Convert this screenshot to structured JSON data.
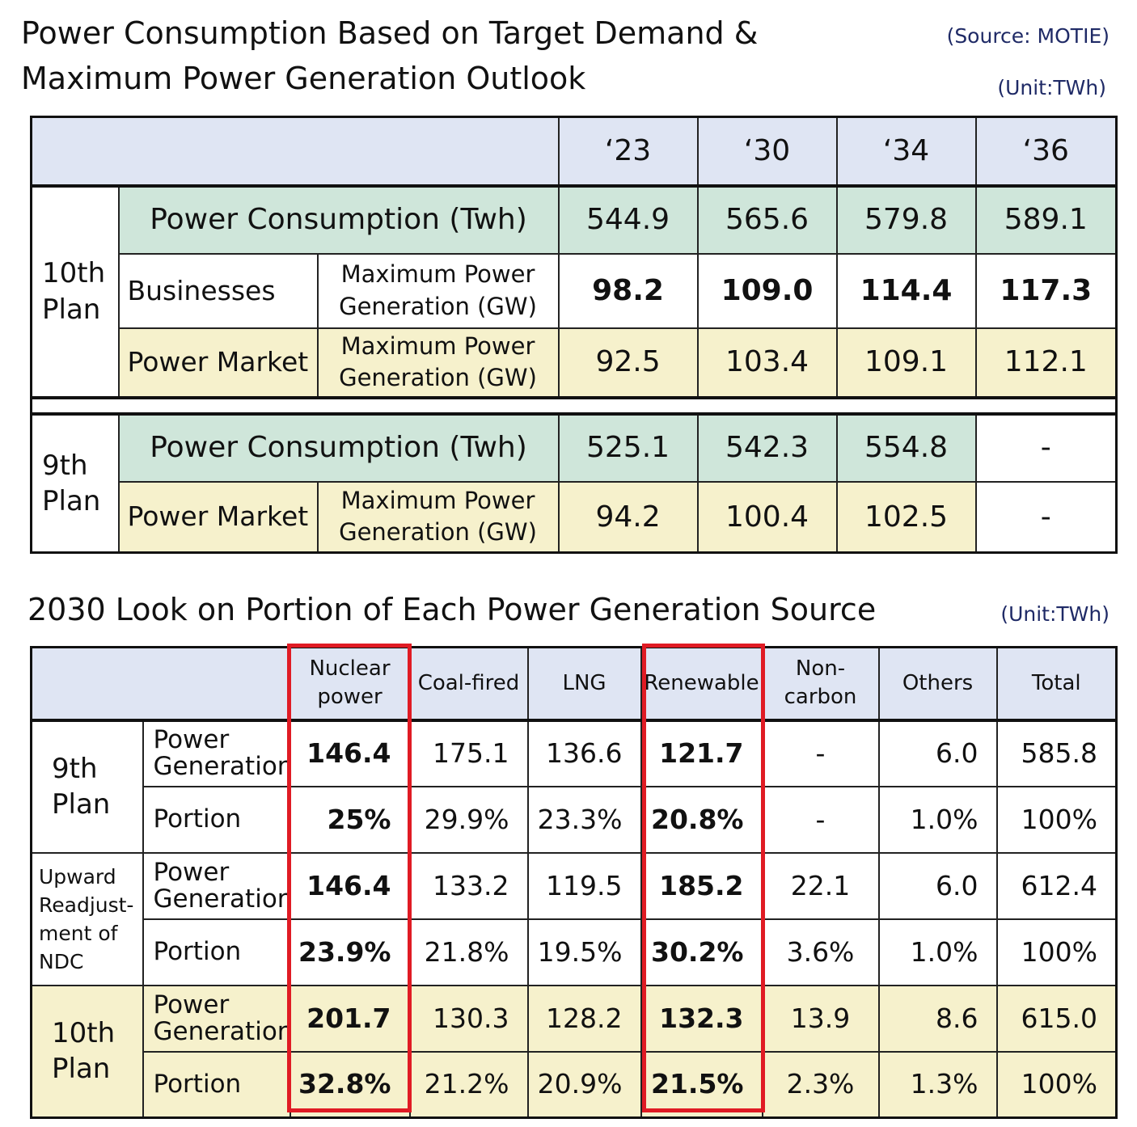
{
  "title1": {
    "line1": "Power Consumption Based on Target Demand &",
    "line2": "Maximum Power Generation Outlook",
    "source": "(Source: MOTIE)",
    "unit": "(Unit:TWh)"
  },
  "table1": {
    "years": [
      "‘23",
      "‘30",
      "‘34",
      "‘36"
    ],
    "plan10": {
      "label": "10th Plan",
      "consumption": {
        "label": "Power Consumption (Twh)",
        "values": [
          "544.9",
          "565.6",
          "579.8",
          "589.1"
        ]
      },
      "businesses": {
        "label": "Businesses",
        "sub": "Maximum Power Generation (GW)",
        "values": [
          "98.2",
          "109.0",
          "114.4",
          "117.3"
        ]
      },
      "market": {
        "label": "Power Market",
        "sub": "Maximum Power Generation (GW)",
        "values": [
          "92.5",
          "103.4",
          "109.1",
          "112.1"
        ]
      }
    },
    "plan9": {
      "label": "9th Plan",
      "consumption": {
        "label": "Power Consumption (Twh)",
        "values": [
          "525.1",
          "542.3",
          "554.8",
          "-"
        ]
      },
      "market": {
        "label": "Power Market",
        "sub": "Maximum Power Generation (GW)",
        "values": [
          "94.2",
          "100.4",
          "102.5",
          "-"
        ]
      }
    }
  },
  "title2": {
    "text": "2030 Look on Portion of Each Power Generation Source",
    "unit": "(Unit:TWh)"
  },
  "table2": {
    "columns": [
      "Nuclear power",
      "Coal-fired",
      "LNG",
      "Renewable",
      "Non-carbon",
      "Others",
      "Total"
    ],
    "row_labels": {
      "generation": "Power Generation",
      "portion": "Portion"
    },
    "groups": [
      {
        "label": "9th Plan",
        "generation": [
          "146.4",
          "175.1",
          "136.6",
          "121.7",
          "-",
          "6.0",
          "585.8"
        ],
        "portion": [
          "25%",
          "29.9%",
          "23.3%",
          "20.8%",
          "-",
          "1.0%",
          "100%"
        ]
      },
      {
        "label": "Upward Readjust-ment of NDC",
        "generation": [
          "146.4",
          "133.2",
          "119.5",
          "185.2",
          "22.1",
          "6.0",
          "612.4"
        ],
        "portion": [
          "23.9%",
          "21.8%",
          "19.5%",
          "30.2%",
          "3.6%",
          "1.0%",
          "100%"
        ]
      },
      {
        "label": "10th Plan",
        "generation": [
          "201.7",
          "130.3",
          "128.2",
          "132.3",
          "13.9",
          "8.6",
          "615.0"
        ],
        "portion": [
          "32.8%",
          "21.2%",
          "20.9%",
          "21.5%",
          "2.3%",
          "1.3%",
          "100%"
        ]
      }
    ]
  },
  "colors": {
    "header_bg": "#dfe5f3",
    "consumption_bg": "#cfe6da",
    "market_bg": "#f6f1cc",
    "highlight_border": "#e01b24",
    "source_text": "#1f2a66"
  }
}
